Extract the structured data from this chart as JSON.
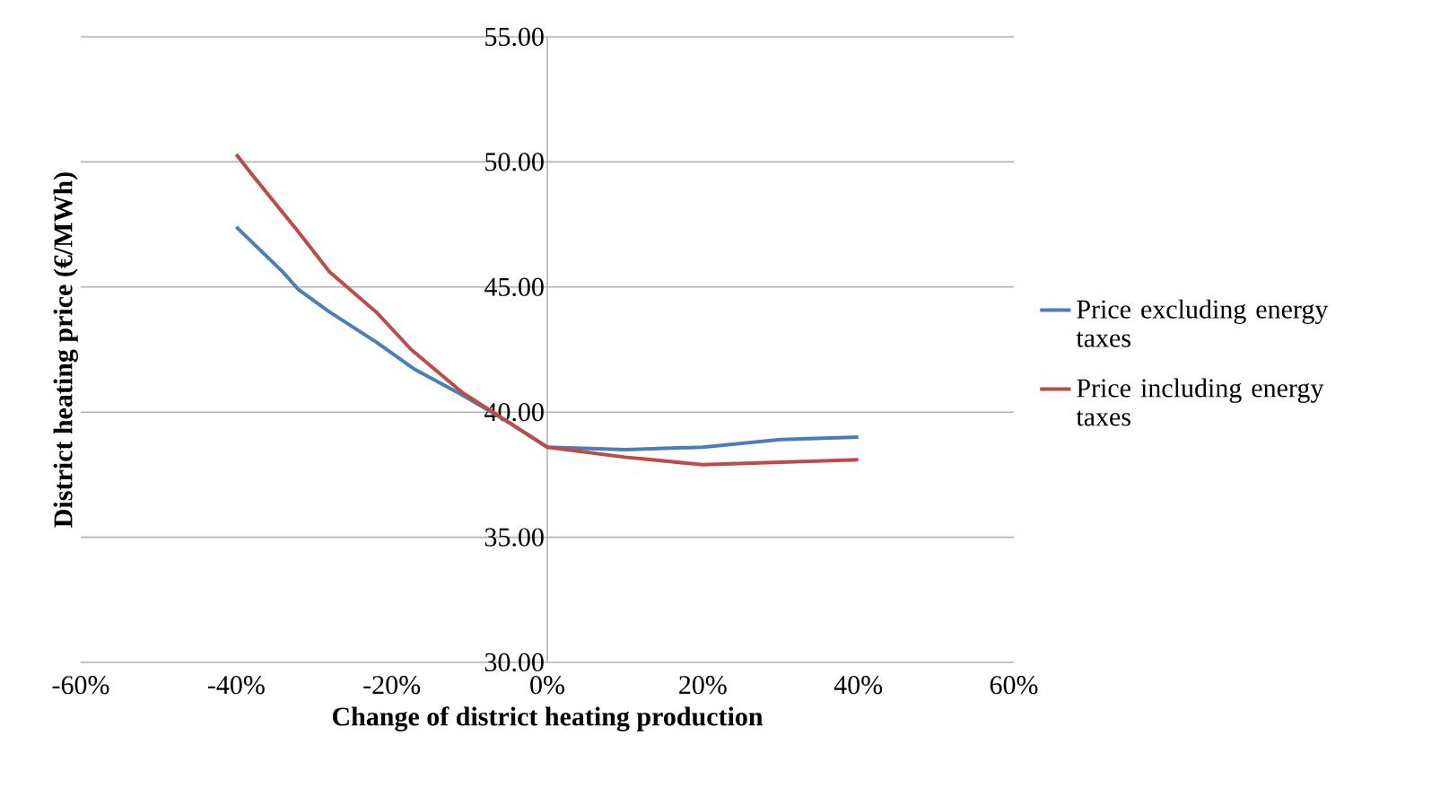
{
  "chart_data": {
    "type": "line",
    "xlabel": "Change of district heating production",
    "ylabel": "District heating price (€/MWh)",
    "xlim": [
      -60,
      60
    ],
    "ylim": [
      30,
      55
    ],
    "xticks": [
      {
        "value": -60,
        "label": "-60%"
      },
      {
        "value": -40,
        "label": "-40%"
      },
      {
        "value": -20,
        "label": "-20%"
      },
      {
        "value": 0,
        "label": "0%"
      },
      {
        "value": 20,
        "label": "20%"
      },
      {
        "value": 40,
        "label": "40%"
      },
      {
        "value": 60,
        "label": "60%"
      }
    ],
    "yticks": [
      {
        "value": 30,
        "label": "30.00"
      },
      {
        "value": 35,
        "label": "35.00"
      },
      {
        "value": 40,
        "label": "40.00"
      },
      {
        "value": 45,
        "label": "45.00"
      },
      {
        "value": 50,
        "label": "50.00"
      },
      {
        "value": 55,
        "label": "55.00"
      }
    ],
    "grid": "y",
    "legend": "right",
    "marker": "none",
    "line_style": "solid",
    "series": [
      {
        "name": "Price excluding energy taxes",
        "color": "#4a7ebb",
        "x": [
          -40,
          -34,
          -32,
          -28,
          -22,
          -17,
          -11,
          -5,
          0,
          10,
          20,
          30,
          40
        ],
        "values": [
          47.4,
          45.6,
          44.9,
          44.0,
          42.8,
          41.7,
          40.7,
          39.6,
          38.6,
          38.5,
          38.6,
          38.9,
          39.0
        ]
      },
      {
        "name": "Price including energy taxes",
        "color": "#be4b48",
        "x": [
          -40,
          -38,
          -32,
          -28,
          -22,
          -17.5,
          -11,
          -5,
          -2,
          0,
          5,
          10,
          20,
          30,
          40
        ],
        "values": [
          50.3,
          49.5,
          47.2,
          45.6,
          44.0,
          42.5,
          40.8,
          39.6,
          39.0,
          38.6,
          38.4,
          38.2,
          37.9,
          38.0,
          38.1
        ]
      }
    ]
  }
}
